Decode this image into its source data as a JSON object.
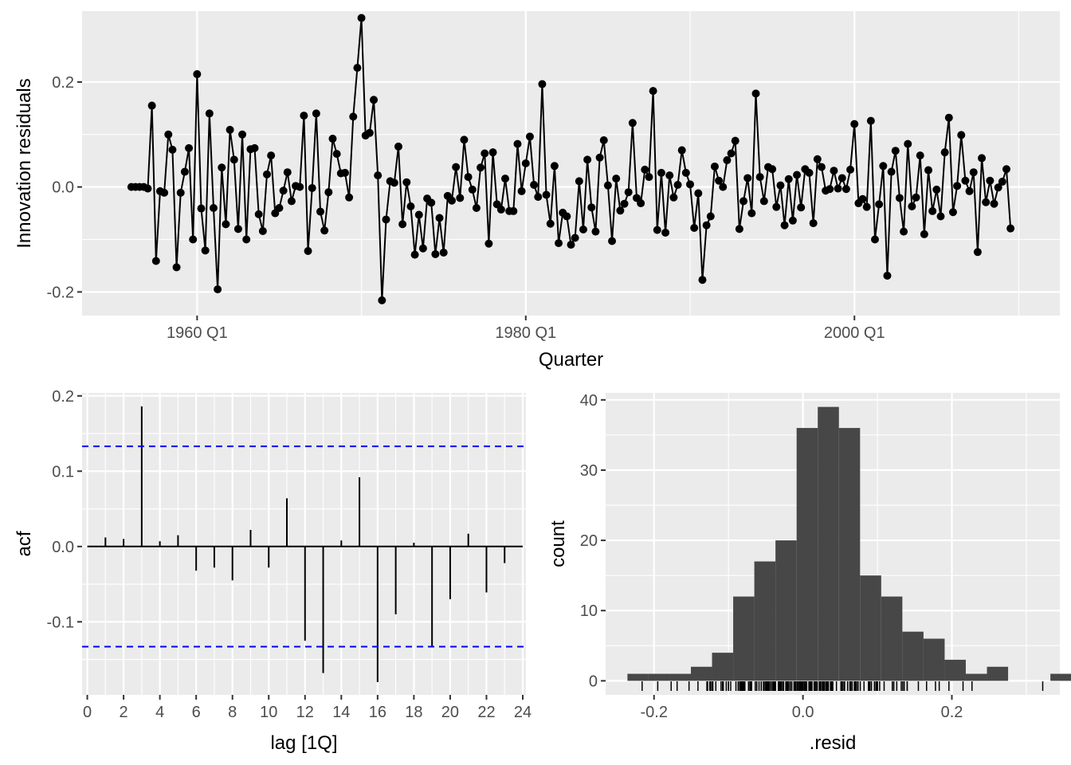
{
  "colors": {
    "panel_bg": "#ebebeb",
    "grid_major": "#ffffff",
    "data_ink": "#000000",
    "bar_fill": "#474747",
    "ci_line": "#0000ff",
    "tick_text": "#4d4d4d"
  },
  "chart_data": [
    {
      "id": "residuals",
      "type": "line",
      "markers": true,
      "xlabel": "Quarter",
      "ylabel": "Innovation residuals",
      "x_start_year": 1956,
      "x_start_quarter": 1,
      "x_step": "quarter",
      "xlim": [
        "1953 Q1",
        "2012 Q3"
      ],
      "ylim": [
        -0.245,
        0.335
      ],
      "xticks": [
        {
          "value": "1960 Q1",
          "label": "1960 Q1"
        },
        {
          "value": "1980 Q1",
          "label": "1980 Q1"
        },
        {
          "value": "2000 Q1",
          "label": "2000 Q1"
        }
      ],
      "yticks": [
        {
          "value": -0.2,
          "label": "-0.2"
        },
        {
          "value": 0.0,
          "label": "0.0"
        },
        {
          "value": 0.2,
          "label": "0.2"
        }
      ],
      "grid": true,
      "values": [
        0.0,
        0.0,
        0.0,
        0.0,
        -0.003,
        0.155,
        -0.141,
        -0.008,
        -0.011,
        0.1,
        0.071,
        -0.153,
        -0.011,
        0.029,
        0.074,
        -0.1,
        0.215,
        -0.041,
        -0.121,
        0.14,
        -0.04,
        -0.195,
        0.037,
        -0.071,
        0.109,
        0.052,
        -0.08,
        0.1,
        -0.1,
        0.072,
        0.074,
        -0.052,
        -0.084,
        0.024,
        0.06,
        -0.05,
        -0.04,
        -0.007,
        0.028,
        -0.027,
        0.002,
        0.0,
        0.136,
        -0.122,
        -0.002,
        0.14,
        -0.047,
        -0.083,
        -0.01,
        0.092,
        0.063,
        0.026,
        0.027,
        -0.02,
        0.134,
        0.227,
        0.322,
        0.098,
        0.103,
        0.166,
        0.022,
        -0.216,
        -0.062,
        0.011,
        0.008,
        0.077,
        -0.071,
        0.009,
        -0.037,
        -0.129,
        -0.053,
        -0.117,
        -0.022,
        -0.03,
        -0.128,
        -0.059,
        -0.125,
        -0.017,
        -0.026,
        0.038,
        -0.021,
        0.09,
        0.019,
        -0.005,
        -0.04,
        0.037,
        0.064,
        -0.108,
        0.066,
        -0.033,
        -0.043,
        0.016,
        -0.046,
        -0.046,
        0.082,
        -0.008,
        0.045,
        0.096,
        0.004,
        -0.019,
        0.196,
        -0.015,
        -0.07,
        0.04,
        -0.107,
        -0.049,
        -0.056,
        -0.11,
        -0.097,
        0.011,
        -0.081,
        0.052,
        -0.039,
        -0.085,
        0.056,
        0.089,
        0.003,
        -0.103,
        0.016,
        -0.045,
        -0.032,
        -0.01,
        0.122,
        -0.021,
        -0.031,
        0.033,
        0.019,
        0.183,
        -0.082,
        0.027,
        -0.087,
        0.022,
        -0.02,
        0.004,
        0.07,
        0.027,
        0.005,
        -0.078,
        -0.012,
        -0.177,
        -0.073,
        -0.056,
        0.039,
        0.012,
        0.0,
        0.051,
        0.064,
        0.088,
        -0.08,
        -0.027,
        0.017,
        -0.05,
        0.178,
        0.019,
        -0.027,
        0.038,
        0.034,
        -0.038,
        0.003,
        -0.073,
        0.015,
        -0.064,
        0.023,
        -0.039,
        0.034,
        0.027,
        -0.069,
        0.053,
        0.038,
        -0.007,
        -0.004,
        0.031,
        -0.003,
        0.017,
        -0.004,
        0.033,
        0.12,
        -0.031,
        -0.023,
        -0.038,
        0.126,
        -0.1,
        -0.033,
        0.04,
        -0.169,
        0.029,
        0.069,
        -0.021,
        -0.085,
        0.082,
        -0.037,
        -0.02,
        0.06,
        -0.09,
        0.032,
        -0.046,
        -0.005,
        -0.056,
        0.066,
        0.132,
        -0.048,
        0.002,
        0.099,
        0.012,
        -0.008,
        0.028,
        -0.124,
        0.055,
        -0.029,
        0.012,
        -0.032,
        -0.001,
        0.01,
        0.034,
        -0.079
      ]
    },
    {
      "id": "acf",
      "type": "bar",
      "xlabel": "lag [1Q]",
      "ylabel": "acf",
      "xlim": [
        -0.2,
        24.0
      ],
      "ylim": [
        -0.197,
        0.204
      ],
      "xticks": [
        0,
        2,
        4,
        6,
        8,
        10,
        12,
        14,
        16,
        18,
        20,
        22,
        24
      ],
      "yticks": [
        {
          "value": -0.1,
          "label": "-0.1"
        },
        {
          "value": 0.0,
          "label": "0.0"
        },
        {
          "value": 0.1,
          "label": "0.1"
        },
        {
          "value": 0.2,
          "label": "0.2"
        }
      ],
      "grid": true,
      "lags": [
        1,
        2,
        3,
        4,
        5,
        6,
        7,
        8,
        9,
        10,
        11,
        12,
        13,
        14,
        15,
        16,
        17,
        18,
        19,
        20,
        21,
        22,
        23
      ],
      "values": [
        0.012,
        0.01,
        0.186,
        0.007,
        0.015,
        -0.032,
        -0.028,
        -0.045,
        0.022,
        -0.028,
        0.064,
        -0.125,
        -0.168,
        0.008,
        0.092,
        -0.18,
        -0.09,
        0.005,
        -0.132,
        -0.07,
        0.017,
        -0.061,
        -0.022
      ],
      "confidence_bounds": [
        0.133,
        -0.133
      ]
    },
    {
      "id": "histogram",
      "type": "bar",
      "subtype": "histogram_with_rug",
      "xlabel": ".resid",
      "ylabel": "count",
      "xlim": [
        -0.265,
        0.345
      ],
      "ylim": [
        -2.0,
        41.0
      ],
      "xticks": [
        {
          "value": -0.2,
          "label": "-0.2"
        },
        {
          "value": 0.0,
          "label": "0.0"
        },
        {
          "value": 0.2,
          "label": "0.2"
        }
      ],
      "yticks": [
        0,
        10,
        20,
        30,
        40
      ],
      "grid": true,
      "bin_width": 0.0284,
      "bins_start": -0.2357,
      "counts": [
        1,
        1,
        1,
        2,
        4,
        12,
        17,
        20,
        36,
        39,
        36,
        15,
        12,
        7,
        6,
        3,
        1,
        2,
        0,
        0,
        1
      ],
      "rug": "residuals"
    }
  ]
}
